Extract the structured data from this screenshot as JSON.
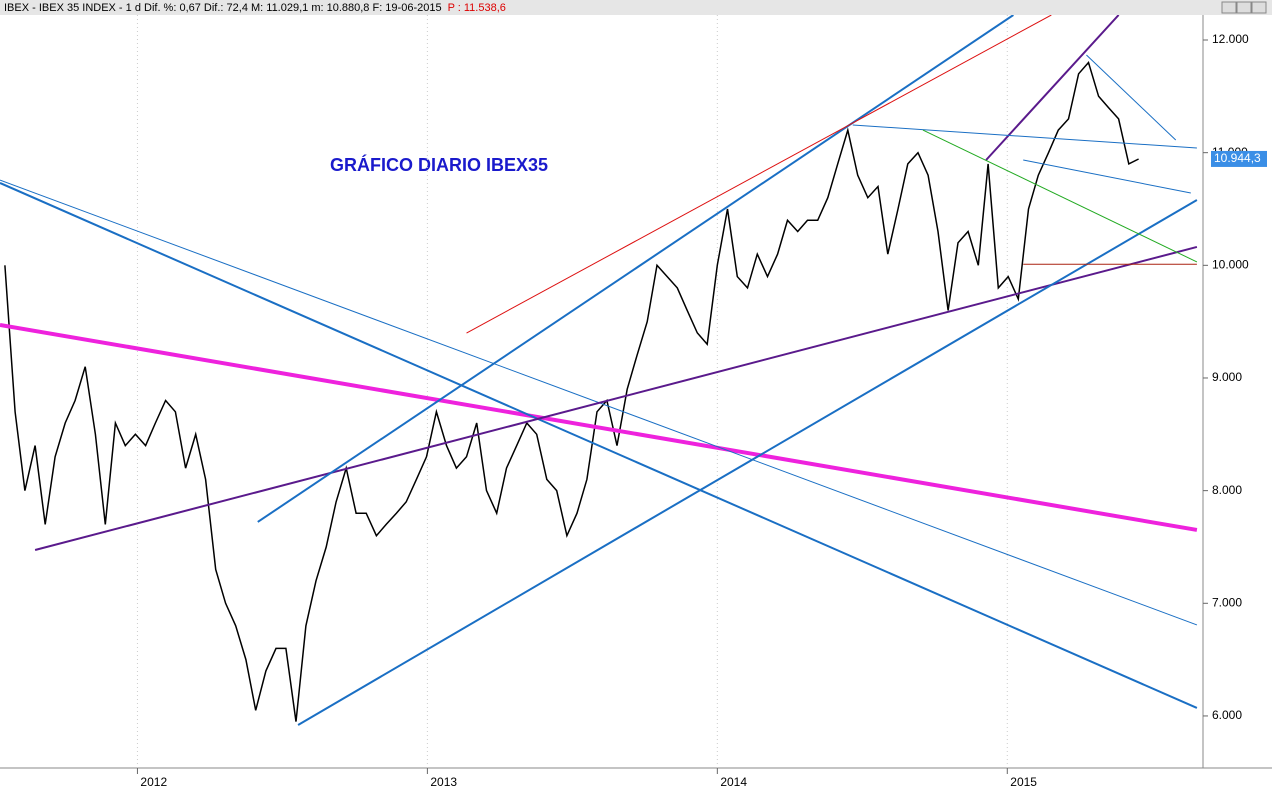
{
  "header": {
    "text": "IBEX - IBEX 35 INDEX - 1 d Dif. %: 0,67 Dif.: 72,4 M: 11.029,1 m: 10.880,8 F: 19-06-2015",
    "price_text": "P : 11.538,6"
  },
  "chart_data": {
    "type": "line",
    "title": "GRÁFICO DIARIO IBEX35",
    "xlim": [
      2011.526,
      2015.675
    ],
    "xticks": [
      2012,
      2013,
      2014,
      2015
    ],
    "ylim": [
      5538,
      12222
    ],
    "yticks": [
      {
        "value": 6000,
        "label": "6.000"
      },
      {
        "value": 7000,
        "label": "7.000"
      },
      {
        "value": 8000,
        "label": "8.000"
      },
      {
        "value": 9000,
        "label": "9.000"
      },
      {
        "value": 10000,
        "label": "10.000"
      },
      {
        "value": 11000,
        "label": "11.000"
      },
      {
        "value": 12000,
        "label": "12.000"
      }
    ],
    "grid": true,
    "last_price": {
      "value": 10944.3,
      "label": "10.944,3"
    },
    "series": [
      {
        "color": "#000000",
        "x": [
          2011.543,
          2011.578,
          2011.612,
          2011.647,
          2011.682,
          2011.716,
          2011.751,
          2011.785,
          2011.82,
          2011.855,
          2011.889,
          2011.924,
          2011.958,
          2011.993,
          2012.028,
          2012.062,
          2012.097,
          2012.131,
          2012.166,
          2012.201,
          2012.235,
          2012.27,
          2012.304,
          2012.339,
          2012.374,
          2012.408,
          2012.443,
          2012.478,
          2012.512,
          2012.547,
          2012.581,
          2012.616,
          2012.651,
          2012.685,
          2012.72,
          2012.754,
          2012.789,
          2012.824,
          2012.858,
          2012.893,
          2012.927,
          2012.962,
          2012.997,
          2013.031,
          2013.066,
          2013.1,
          2013.135,
          2013.17,
          2013.204,
          2013.239,
          2013.273,
          2013.308,
          2013.343,
          2013.377,
          2013.412,
          2013.446,
          2013.481,
          2013.516,
          2013.55,
          2013.585,
          2013.619,
          2013.654,
          2013.689,
          2013.723,
          2013.758,
          2013.792,
          2013.827,
          2013.862,
          2013.896,
          2013.931,
          2013.965,
          2014.0,
          2014.035,
          2014.069,
          2014.104,
          2014.138,
          2014.173,
          2014.208,
          2014.242,
          2014.277,
          2014.311,
          2014.346,
          2014.381,
          2014.415,
          2014.45,
          2014.484,
          2014.519,
          2014.554,
          2014.588,
          2014.623,
          2014.657,
          2014.692,
          2014.727,
          2014.761,
          2014.796,
          2014.83,
          2014.865,
          2014.9,
          2014.934,
          2014.969,
          2015.003,
          2015.038,
          2015.073,
          2015.107,
          2015.142,
          2015.176,
          2015.211,
          2015.246,
          2015.28,
          2015.315,
          2015.349,
          2015.384,
          2015.419,
          2015.453
        ],
        "values": [
          10000,
          8700,
          8000,
          8400,
          7700,
          8300,
          8600,
          8800,
          9100,
          8500,
          7700,
          8600,
          8400,
          8500,
          8400,
          8600,
          8800,
          8700,
          8200,
          8500,
          8100,
          7300,
          7000,
          6800,
          6500,
          6050,
          6400,
          6600,
          6600,
          5950,
          6800,
          7200,
          7500,
          7900,
          8200,
          7800,
          7800,
          7600,
          7700,
          7800,
          7900,
          8100,
          8300,
          8700,
          8400,
          8200,
          8300,
          8600,
          8000,
          7800,
          8200,
          8400,
          8600,
          8500,
          8100,
          8000,
          7600,
          7800,
          8100,
          8700,
          8800,
          8400,
          8900,
          9200,
          9500,
          10000,
          9900,
          9800,
          9600,
          9400,
          9300,
          10000,
          10500,
          9900,
          9800,
          10100,
          9900,
          10100,
          10400,
          10300,
          10400,
          10400,
          10600,
          10900,
          11200,
          10800,
          10600,
          10700,
          10100,
          10500,
          10900,
          11000,
          10800,
          10300,
          9600,
          10200,
          10300,
          10000,
          10900,
          9800,
          9900,
          9700,
          10500,
          10800,
          11000,
          11200,
          11300,
          11700,
          11800,
          11500,
          11400,
          11300,
          10900,
          10944
        ]
      }
    ],
    "trend_lines": [
      {
        "color": "#ee22dd",
        "width": 4,
        "x": [
          2011.526,
          2015.654
        ],
        "y": [
          9471,
          7651
        ]
      },
      {
        "color": "#1a6fc4",
        "width": 2,
        "x": [
          2011.526,
          2015.654
        ],
        "y": [
          10731,
          6071
        ]
      },
      {
        "color": "#1a6fc4",
        "width": 1,
        "x": [
          2011.526,
          2015.654
        ],
        "y": [
          10757,
          6808
        ]
      },
      {
        "color": "#5a1a8c",
        "width": 2,
        "x": [
          2011.647,
          2015.654
        ],
        "y": [
          7473,
          10163
        ]
      },
      {
        "color": "#1a6fc4",
        "width": 2,
        "x": [
          2012.554,
          2015.654
        ],
        "y": [
          5920,
          10580
        ]
      },
      {
        "color": "#1a6fc4",
        "width": 2,
        "x": [
          2012.415,
          2015.021
        ],
        "y": [
          7722,
          12222
        ]
      },
      {
        "color": "#dd1111",
        "width": 1,
        "x": [
          2013.135,
          2015.152
        ],
        "y": [
          9399,
          12222
        ]
      },
      {
        "color": "#5a1a8c",
        "width": 2,
        "x": [
          2014.927,
          2015.384
        ],
        "y": [
          10935,
          12222
        ]
      },
      {
        "color": "#1a6fc4",
        "width": 1,
        "x": [
          2014.467,
          2015.654
        ],
        "y": [
          11246,
          11041
        ]
      },
      {
        "color": "#1a6fc4",
        "width": 1,
        "x": [
          2015.273,
          2015.581
        ],
        "y": [
          11867,
          11112
        ]
      },
      {
        "color": "#1a6fc4",
        "width": 1,
        "x": [
          2015.055,
          2015.633
        ],
        "y": [
          10935,
          10642
        ]
      },
      {
        "color": "#22aa22",
        "width": 1,
        "x": [
          2014.709,
          2015.654
        ],
        "y": [
          11201,
          10030
        ]
      },
      {
        "color": "#aa2211",
        "width": 1,
        "x": [
          2015.055,
          2015.654
        ],
        "y": [
          10010,
          10010
        ]
      }
    ]
  }
}
